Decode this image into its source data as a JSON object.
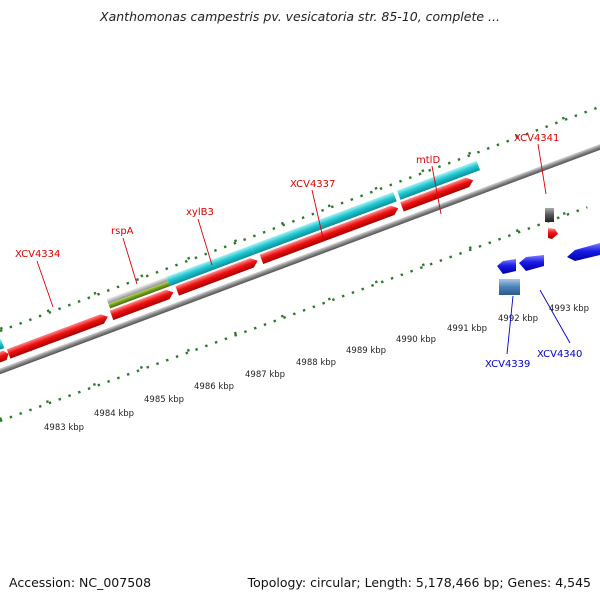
{
  "title": "Xanthomonas campestris pv. vesicatoria str. 85-10, complete ...",
  "footer": {
    "accession": "Accession: NC_007508",
    "summary": "Topology: circular; Length: 5,178,466 bp; Genes: 4,545"
  },
  "colors": {
    "forward_gene": "#ee1111",
    "cds_feature": "#22c8d2",
    "reverse_gene": "#1a1ae6",
    "reverse_feature": "#4a82b8",
    "rrna_feature": "#bdbdbd",
    "trna_feature": "#6f9a1e",
    "small_feature": "#555555",
    "forward_label": "#dd0000",
    "reverse_label": "#0000cc",
    "backbone": "#888888",
    "ticks": "#2a7a2a"
  },
  "kbp_labels": [
    "4983 kbp",
    "4984 kbp",
    "4985 kbp",
    "4986 kbp",
    "4987 kbp",
    "4988 kbp",
    "4989 kbp",
    "4990 kbp",
    "4991 kbp",
    "4992 kbp",
    "4993 kbp"
  ],
  "gene_labels": {
    "forward": [
      "XCV4334",
      "rspA",
      "xylB3",
      "XCV4337",
      "mtlD",
      "XCV4341"
    ],
    "reverse": [
      "XCV4339",
      "XCV4340"
    ]
  }
}
